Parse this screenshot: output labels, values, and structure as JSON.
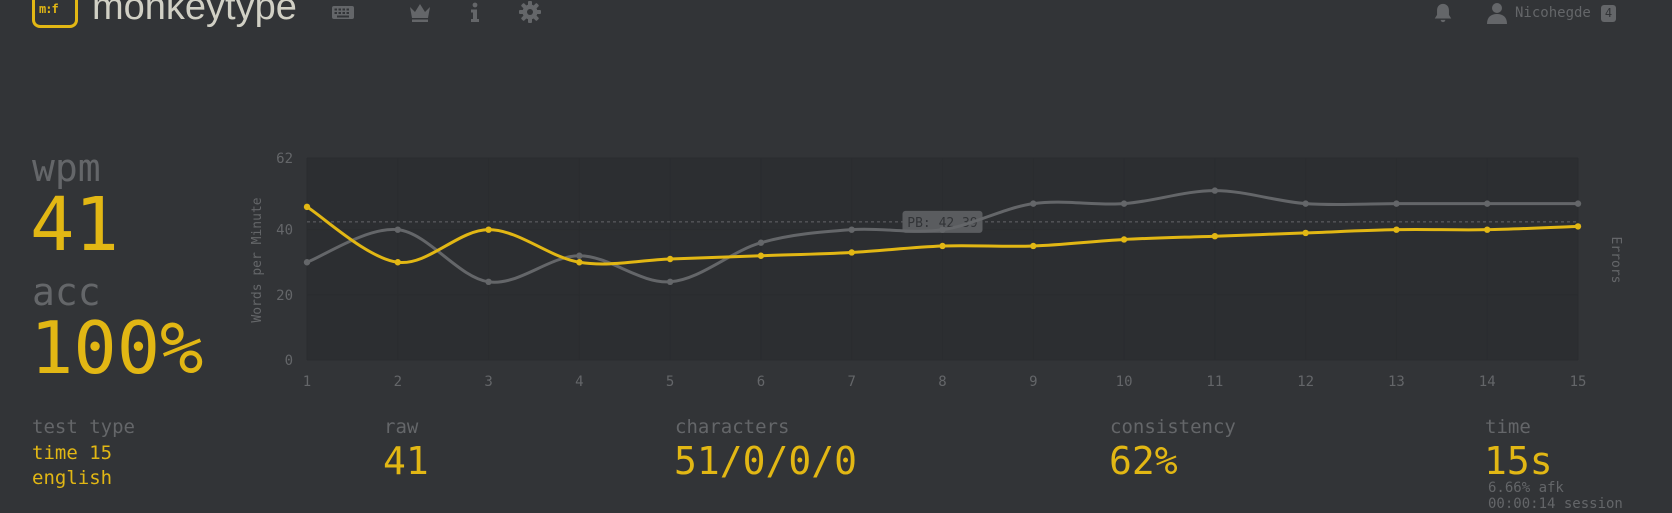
{
  "app": {
    "logo_mark": "m:f",
    "name": "monkeytype"
  },
  "nav": {
    "icons": [
      "keyboard-icon",
      "crown-icon",
      "info-icon",
      "gear-icon"
    ],
    "notifications_icon": "bell-icon",
    "user_icon": "user-icon",
    "username": "Nicohegde",
    "badge": "4"
  },
  "colors": {
    "background": "#323437",
    "accent": "#e2b714",
    "sub": "#646669",
    "text": "#d1d0c5"
  },
  "results": {
    "wpm_label": "wpm",
    "wpm_value": "41",
    "acc_label": "acc",
    "acc_value": "100%",
    "test_type_label": "test type",
    "test_type_mode": "time 15",
    "test_type_language": "english",
    "raw_label": "raw",
    "raw_value": "41",
    "characters_label": "characters",
    "characters_value": "51/0/0/0",
    "consistency_label": "consistency",
    "consistency_value": "62%",
    "time_label": "time",
    "time_value": "15s",
    "afk_text": "6.66% afk",
    "session_text": "00:00:14 session"
  },
  "chart_data": {
    "type": "line",
    "x": [
      1,
      2,
      3,
      4,
      5,
      6,
      7,
      8,
      9,
      10,
      11,
      12,
      13,
      14,
      15
    ],
    "series": [
      {
        "name": "wpm",
        "color": "#e2b714",
        "values": [
          47,
          30,
          40,
          30,
          31,
          32,
          33,
          35,
          35,
          37,
          38,
          39,
          40,
          40,
          41
        ]
      },
      {
        "name": "raw",
        "color": "#646669",
        "values": [
          30,
          40,
          24,
          32,
          24,
          36,
          40,
          40,
          48,
          48,
          52,
          48,
          48,
          48,
          48
        ]
      }
    ],
    "ylabel": "Words per Minute",
    "y2label": "Errors",
    "yticks": [
      0,
      20,
      40,
      62
    ],
    "ylim": [
      0,
      62
    ],
    "xlim": [
      1,
      15
    ],
    "pb_line": 42.39,
    "pb_label": "PB: 42.39",
    "grid": true
  }
}
